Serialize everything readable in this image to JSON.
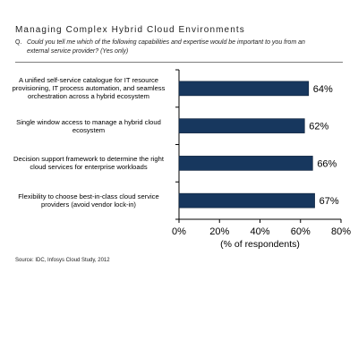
{
  "header": {
    "title": "Managing Complex Hybrid Cloud Environments",
    "question_prefix": "Q.",
    "question": "Could you tell me which of the following capabilities and expertise would be important to you from an external service provider? (Yes only)"
  },
  "chart_data": {
    "type": "bar",
    "orientation": "horizontal",
    "categories": [
      "A unified self-service catalogue for IT resource provisioning, IT process automation, and seamless orchestration across a hybrid ecosystem",
      "Single window access to manage a hybrid cloud ecosystem",
      "Decision support framework to determine the right cloud services for enterprise workloads",
      "Flexibility to choose best-in-class cloud service providers (avoid vendor lock-in)"
    ],
    "values": [
      64,
      62,
      66,
      67
    ],
    "value_labels": [
      "64%",
      "62%",
      "66%",
      "67%"
    ],
    "xlabel": "(% of respondents)",
    "xlim": [
      0,
      80
    ],
    "xticks": [
      0,
      20,
      40,
      60,
      80
    ],
    "xtick_labels": [
      "0%",
      "20%",
      "40%",
      "60%",
      "80%"
    ],
    "bar_color": "#17375e",
    "grid": false
  },
  "footer": {
    "source": "Source: IDC, Infosys Cloud Study, 2012"
  }
}
